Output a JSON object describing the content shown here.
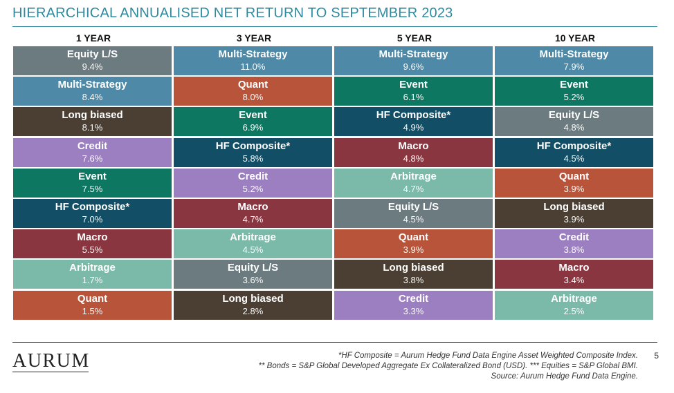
{
  "title": "HIERARCHICAL ANNUALISED NET RETURN TO SEPTEMBER 2023",
  "category_colors": {
    "Equity L/S": "#6c7b80",
    "Multi-Strategy": "#4e8aa8",
    "Long biased": "#4a3f32",
    "Credit": "#9b7fc0",
    "Event": "#0d7762",
    "HF Composite*": "#124f66",
    "Macro": "#8a3640",
    "Arbitrage": "#7bb9a9",
    "Quant": "#b8543a"
  },
  "columns": [
    {
      "header": "1 YEAR",
      "cells": [
        {
          "name": "Equity L/S",
          "value": "9.4%"
        },
        {
          "name": "Multi-Strategy",
          "value": "8.4%"
        },
        {
          "name": "Long biased",
          "value": "8.1%"
        },
        {
          "name": "Credit",
          "value": "7.6%"
        },
        {
          "name": "Event",
          "value": "7.5%"
        },
        {
          "name": "HF Composite*",
          "value": "7.0%"
        },
        {
          "name": "Macro",
          "value": "5.5%"
        },
        {
          "name": "Arbitrage",
          "value": "1.7%"
        },
        {
          "name": "Quant",
          "value": "1.5%"
        }
      ]
    },
    {
      "header": "3 YEAR",
      "cells": [
        {
          "name": "Multi-Strategy",
          "value": "11.0%"
        },
        {
          "name": "Quant",
          "value": "8.0%"
        },
        {
          "name": "Event",
          "value": "6.9%"
        },
        {
          "name": "HF Composite*",
          "value": "5.8%"
        },
        {
          "name": "Credit",
          "value": "5.2%"
        },
        {
          "name": "Macro",
          "value": "4.7%"
        },
        {
          "name": "Arbitrage",
          "value": "4.5%"
        },
        {
          "name": "Equity L/S",
          "value": "3.6%"
        },
        {
          "name": "Long biased",
          "value": "2.8%"
        }
      ]
    },
    {
      "header": "5 YEAR",
      "cells": [
        {
          "name": "Multi-Strategy",
          "value": "9.6%"
        },
        {
          "name": "Event",
          "value": "6.1%"
        },
        {
          "name": "HF Composite*",
          "value": "4.9%"
        },
        {
          "name": "Macro",
          "value": "4.8%"
        },
        {
          "name": "Arbitrage",
          "value": "4.7%"
        },
        {
          "name": "Equity L/S",
          "value": "4.5%"
        },
        {
          "name": "Quant",
          "value": "3.9%"
        },
        {
          "name": "Long biased",
          "value": "3.8%"
        },
        {
          "name": "Credit",
          "value": "3.3%"
        }
      ]
    },
    {
      "header": "10 YEAR",
      "cells": [
        {
          "name": "Multi-Strategy",
          "value": "7.9%"
        },
        {
          "name": "Event",
          "value": "5.2%"
        },
        {
          "name": "Equity L/S",
          "value": "4.8%"
        },
        {
          "name": "HF Composite*",
          "value": "4.5%"
        },
        {
          "name": "Quant",
          "value": "3.9%"
        },
        {
          "name": "Long biased",
          "value": "3.9%"
        },
        {
          "name": "Credit",
          "value": "3.8%"
        },
        {
          "name": "Macro",
          "value": "3.4%"
        },
        {
          "name": "Arbitrage",
          "value": "2.5%"
        }
      ]
    }
  ],
  "footer": {
    "logo": "AURUM",
    "footnote_1": "*HF Composite = Aurum Hedge Fund Data Engine Asset Weighted Composite Index.",
    "footnote_2": "** Bonds = S&P Global Developed Aggregate Ex Collateralized Bond (USD). *** Equities = S&P Global BMI.",
    "footnote_3": "Source: Aurum Hedge Fund Data Engine.",
    "page_number": "5"
  }
}
